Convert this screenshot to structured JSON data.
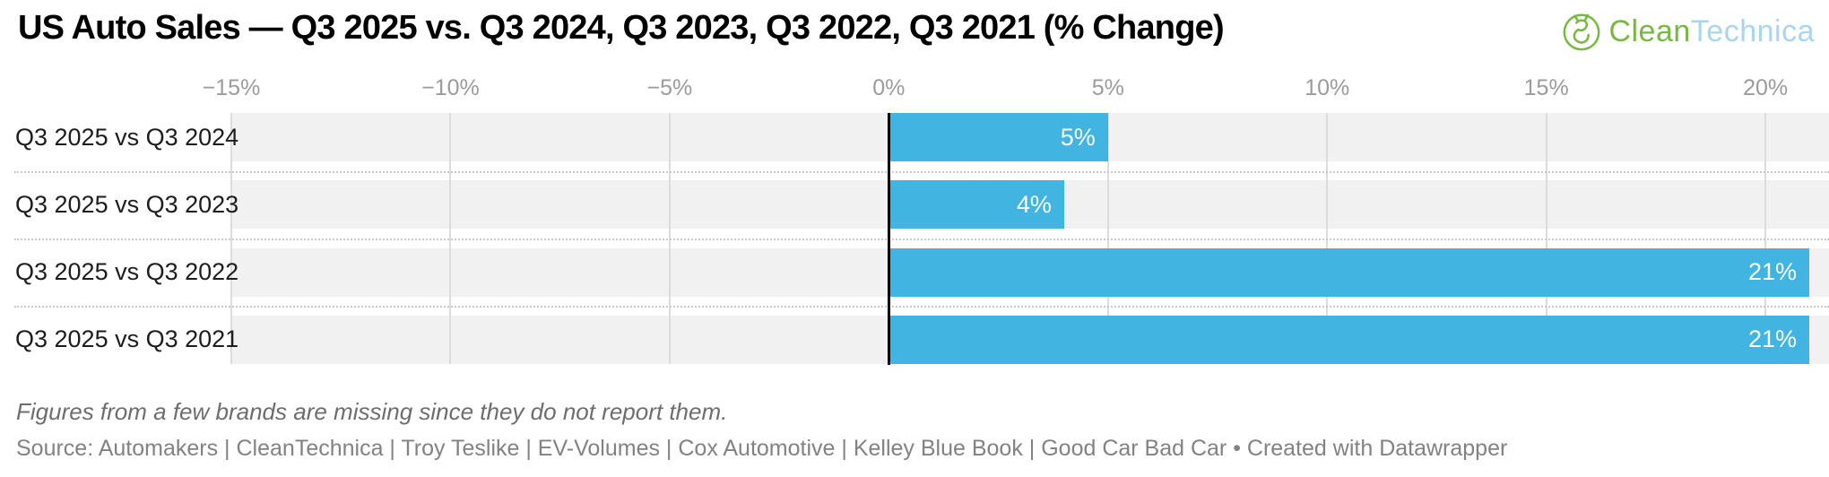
{
  "header": {
    "title": "US Auto Sales — Q3 2025 vs. Q3 2024, Q3 2023, Q3 2022, Q3 2021 (% Change)",
    "logo": {
      "text_primary": "Clean",
      "text_secondary": "Technica",
      "primary_color": "#77b843",
      "secondary_color": "#a9d5f2"
    }
  },
  "chart_data": {
    "type": "bar",
    "orientation": "horizontal",
    "title": "US Auto Sales — Q3 2025 vs. Q3 2024, Q3 2023, Q3 2022, Q3 2021 (% Change)",
    "categories": [
      "Q3 2025 vs Q3 2024",
      "Q3 2025 vs Q3 2023",
      "Q3 2025 vs Q3 2022",
      "Q3 2025 vs Q3 2021"
    ],
    "values": [
      5,
      4,
      21,
      21
    ],
    "value_labels": [
      "5%",
      "4%",
      "21%",
      "21%"
    ],
    "ticks": [
      -15,
      -10,
      -5,
      0,
      5,
      10,
      15,
      20
    ],
    "tick_labels": [
      "−15%",
      "−10%",
      "−5%",
      "0%",
      "5%",
      "10%",
      "15%",
      "20%"
    ],
    "xlim": [
      -15,
      21.45
    ],
    "xlabel": "",
    "ylabel": "",
    "grid": true,
    "legend": "none",
    "bar_color": "#41b4e2",
    "row_bg_color": "#f1f1f1",
    "gridline_color": "#dcdcdc",
    "separator_color": "#c9c9c9",
    "zero_line_color": "#000000",
    "value_label_color": "#ffffff",
    "tick_label_color": "#9b9b9b"
  },
  "footer": {
    "note": "Figures from a few brands are missing since they do not report them.",
    "source": "Source: Automakers | CleanTechnica | Troy Teslike | EV-Volumes | Cox Automotive | Kelley Blue Book | Good Car Bad Car • Created with Datawrapper"
  }
}
